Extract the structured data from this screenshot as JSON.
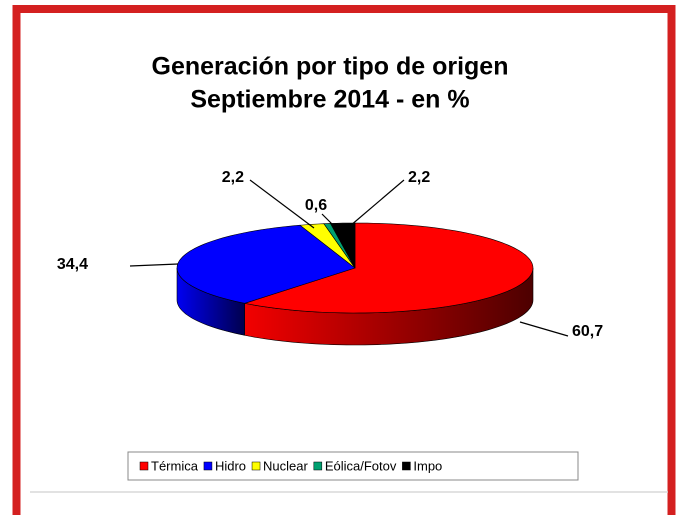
{
  "chart_data": {
    "type": "pie3d",
    "title": "Generación por tipo de origen",
    "subtitle": "Septiembre 2014 - en %",
    "categories": [
      "Térmica",
      "Hidro",
      "Nuclear",
      "Eólica/Fotov",
      "Impo"
    ],
    "values": [
      60.7,
      34.4,
      2.2,
      0.6,
      2.2
    ],
    "value_labels": [
      "60,7",
      "34,4",
      "2,2",
      "0,6",
      "2,2"
    ],
    "colors": [
      "#ff0000",
      "#0000ff",
      "#ffff00",
      "#00a070",
      "#000000"
    ],
    "legend": "bottom"
  }
}
